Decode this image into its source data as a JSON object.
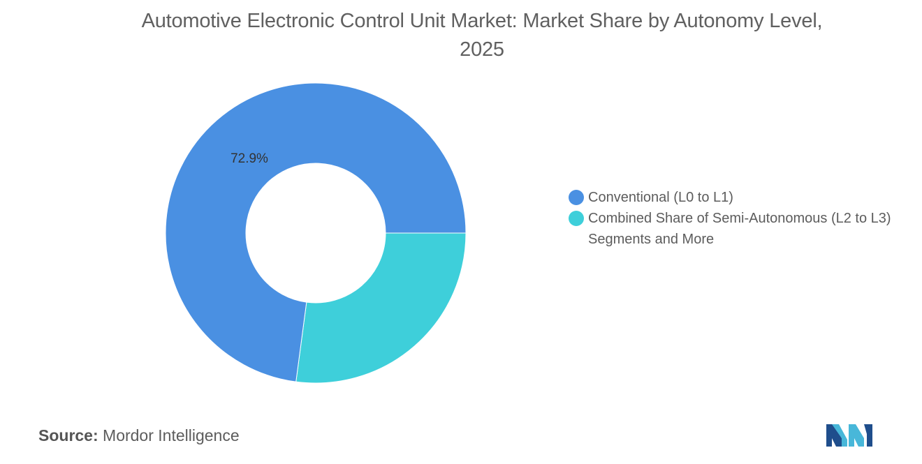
{
  "title_line1": "Automotive Electronic Control Unit Market: Market Share by Autonomy Level,",
  "title_line2": "2025",
  "source_label": "Source:",
  "source_name": "Mordor Intelligence",
  "colors": {
    "conventional": "#4a90e2",
    "semi_autonomous": "#3ecfda",
    "logo_dark": "#1f4e8c",
    "logo_light": "#48b7d9"
  },
  "chart_data": {
    "type": "pie",
    "style": "donut",
    "title": "Automotive Electronic Control Unit Market: Market Share by Autonomy Level, 2025",
    "categories": [
      "Conventional (L0 to L1)",
      "Combined Share of Semi-Autonomous (L2 to L3) Segments and More"
    ],
    "values": [
      72.9,
      27.1
    ],
    "data_labels": [
      "72.9%",
      ""
    ],
    "legend_position": "right"
  },
  "legend": [
    {
      "label": "Conventional (L0 to L1)",
      "color": "#4a90e2"
    },
    {
      "label": "Combined Share of Semi-Autonomous (L2 to L3) Segments and More",
      "color": "#3ecfda"
    }
  ]
}
